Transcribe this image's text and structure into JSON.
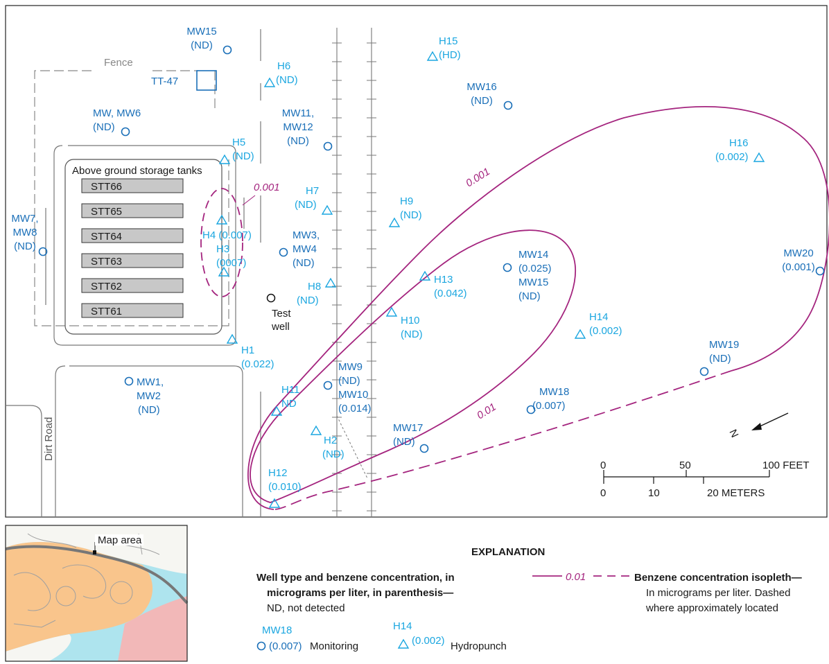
{
  "map": {
    "fence_label": "Fence",
    "tt47": "TT-47",
    "tank_group_label": "Above ground storage tanks",
    "tanks": [
      "STT66",
      "STT65",
      "STT64",
      "STT63",
      "STT62",
      "STT61"
    ],
    "dirt_road": "Dirt Road",
    "test_well": [
      "Test",
      "well"
    ],
    "isopleth_labels": {
      "outer": "0.001",
      "inner": "0.01",
      "small": "0.001"
    },
    "monitoring_wells": [
      {
        "id": "mw15-nw",
        "lines": [
          "MW15",
          "(ND)"
        ]
      },
      {
        "id": "mw-mw6",
        "lines": [
          "MW, MW6",
          "(ND)"
        ]
      },
      {
        "id": "mw11-mw12",
        "lines": [
          "MW11,",
          "MW12",
          "(ND)"
        ]
      },
      {
        "id": "mw16",
        "lines": [
          "MW16",
          "(ND)"
        ]
      },
      {
        "id": "mw7-mw8",
        "lines": [
          "MW7,",
          "MW8",
          "(ND)"
        ]
      },
      {
        "id": "mw3-mw4",
        "lines": [
          "MW3,",
          "MW4",
          "(ND)"
        ]
      },
      {
        "id": "mw14-mw15",
        "lines": [
          "MW14",
          "(0.025)",
          "MW15",
          "(ND)"
        ]
      },
      {
        "id": "mw20",
        "lines": [
          "MW20",
          "(0.001)"
        ]
      },
      {
        "id": "mw19",
        "lines": [
          "MW19",
          "(ND)"
        ]
      },
      {
        "id": "mw1-mw2",
        "lines": [
          "MW1,",
          "MW2",
          "(ND)"
        ]
      },
      {
        "id": "mw9-mw10",
        "lines": [
          "MW9",
          "(ND)",
          "MW10",
          "(0.014)"
        ]
      },
      {
        "id": "mw18",
        "lines": [
          "MW18",
          "(0.007)"
        ]
      },
      {
        "id": "mw17",
        "lines": [
          "MW17",
          "(ND)"
        ]
      }
    ],
    "hydropunch_wells": [
      {
        "id": "h15",
        "lines": [
          "H15",
          "(HD)"
        ]
      },
      {
        "id": "h6",
        "lines": [
          "H6",
          "(ND)"
        ]
      },
      {
        "id": "h5",
        "lines": [
          "H5",
          "(ND)"
        ]
      },
      {
        "id": "h16",
        "lines": [
          "H16",
          "(0.002)"
        ]
      },
      {
        "id": "h7",
        "lines": [
          "H7",
          "(ND)"
        ]
      },
      {
        "id": "h9",
        "lines": [
          "H9",
          "(ND)"
        ]
      },
      {
        "id": "h4",
        "lines": [
          "H4 (0.007)"
        ]
      },
      {
        "id": "h3",
        "lines": [
          "H3",
          "(0007)"
        ]
      },
      {
        "id": "h8",
        "lines": [
          "H8",
          "(ND)"
        ]
      },
      {
        "id": "h13",
        "lines": [
          "H13",
          "(0.042)"
        ]
      },
      {
        "id": "h10",
        "lines": [
          "H10",
          "(ND)"
        ]
      },
      {
        "id": "h14",
        "lines": [
          "H14",
          "(0.002)"
        ]
      },
      {
        "id": "h1",
        "lines": [
          "H1",
          "(0.022)"
        ]
      },
      {
        "id": "h11",
        "lines": [
          "H11",
          "ND"
        ]
      },
      {
        "id": "h2",
        "lines": [
          "H2",
          "(ND)"
        ]
      },
      {
        "id": "h12",
        "lines": [
          "H12",
          "(0.010)"
        ]
      }
    ],
    "scale": {
      "feet_ticks": [
        "0",
        "50",
        "100 FEET"
      ],
      "meter_ticks": [
        "0",
        "10",
        "20 METERS"
      ]
    },
    "north_letter": "N"
  },
  "inset": {
    "label": "Map area"
  },
  "explanation": {
    "title": "EXPLANATION",
    "well_heading_1": "Well type and benzene concentration, in",
    "well_heading_2": "micrograms per liter, in parenthesis—",
    "well_heading_3": "ND, not detected",
    "iso_value": "0.01",
    "iso_heading": "Benzene concentration isopleth—",
    "iso_desc_1": "In micrograms per liter. Dashed",
    "iso_desc_2": "where approximately located",
    "mon_id": "MW18",
    "mon_value": "(0.007)",
    "mon_label": "Monitoring",
    "hyd_id": "H14",
    "hyd_value": "(0.002)",
    "hyd_label": "Hydropunch"
  },
  "colors": {
    "monitoring": "#1a6fb8",
    "hydropunch": "#1aa6e0",
    "isopleth": "#a4247e",
    "tank_fill": "#c8c8c8",
    "inset_land": "#f9c58c",
    "inset_water": "#aee4ee",
    "inset_pink": "#f2b8b8"
  }
}
